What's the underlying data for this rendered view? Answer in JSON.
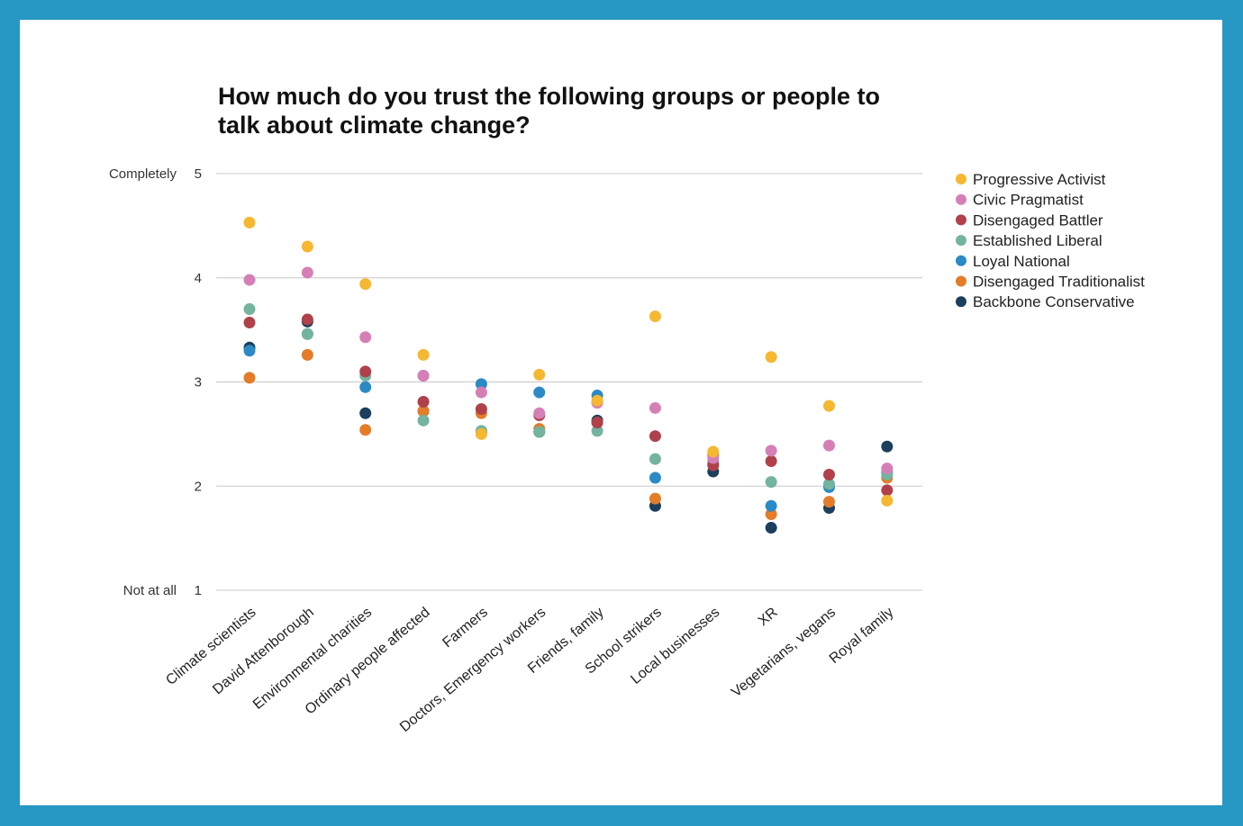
{
  "chart_data": {
    "type": "scatter",
    "title": [
      "How much do you trust the following groups or people to",
      "talk about climate change?"
    ],
    "ylim": [
      1,
      5
    ],
    "yticks": [
      1,
      2,
      3,
      4,
      5
    ],
    "ytick_text": {
      "5": "Completely",
      "1": "Not at all"
    },
    "grid": true,
    "legend_position": "right",
    "categories": [
      "Climate scientists",
      "David Attenborough",
      "Environmental charities",
      "Ordinary people affected",
      "Farmers",
      "Doctors, Emergency workers",
      "Friends, family",
      "School strikers",
      "Local businesses",
      "XR",
      "Vegetarians, vegans",
      "Royal family"
    ],
    "series": [
      {
        "name": "Progressive Activist",
        "color": "#f6b731",
        "values": [
          4.53,
          4.3,
          3.94,
          3.26,
          2.5,
          3.07,
          2.82,
          3.63,
          2.33,
          3.24,
          2.77,
          1.86
        ]
      },
      {
        "name": "Civic Pragmatist",
        "color": "#d67fb7",
        "values": [
          3.98,
          4.05,
          3.43,
          3.06,
          2.9,
          2.7,
          2.8,
          2.75,
          2.27,
          2.34,
          2.39,
          2.17
        ]
      },
      {
        "name": "Disengaged Battler",
        "color": "#b0414a",
        "values": [
          3.57,
          3.6,
          3.1,
          2.81,
          2.74,
          2.68,
          2.61,
          2.48,
          2.2,
          2.24,
          2.11,
          1.96
        ]
      },
      {
        "name": "Established Liberal",
        "color": "#73b39f",
        "values": [
          3.7,
          3.46,
          3.06,
          2.63,
          2.53,
          2.52,
          2.53,
          2.26,
          2.24,
          2.04,
          2.02,
          2.11
        ]
      },
      {
        "name": "Loyal National",
        "color": "#2a8ac5",
        "values": [
          3.3,
          3.46,
          2.95,
          3.06,
          2.98,
          2.9,
          2.87,
          2.08,
          2.22,
          1.81,
          1.99,
          2.13
        ]
      },
      {
        "name": "Disengaged Traditionalist",
        "color": "#e47c28",
        "values": [
          3.04,
          3.26,
          2.54,
          2.72,
          2.7,
          2.55,
          2.61,
          1.88,
          2.3,
          1.73,
          1.85,
          2.08
        ]
      },
      {
        "name": "Backbone Conservative",
        "color": "#1c3f5d",
        "values": [
          3.33,
          3.58,
          2.7,
          2.72,
          2.52,
          2.52,
          2.63,
          1.81,
          2.14,
          1.6,
          1.79,
          2.38
        ]
      }
    ]
  }
}
